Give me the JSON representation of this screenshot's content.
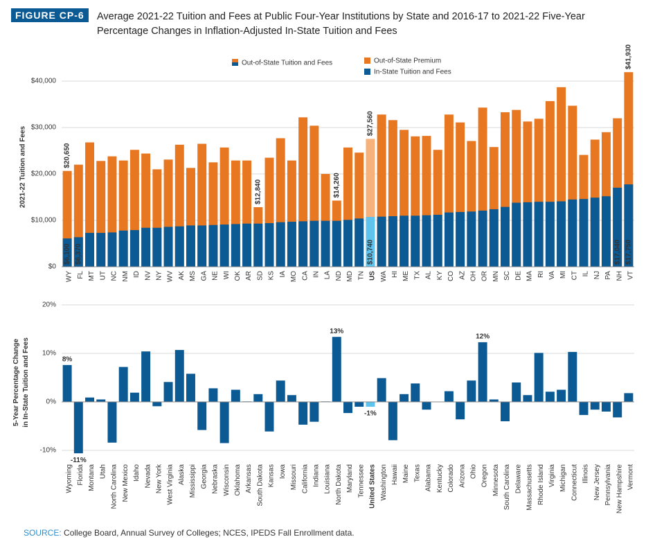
{
  "header": {
    "figure": "FIGURE CP-6",
    "title": "Average 2021-22 Tuition and Fees at Public Four-Year Institutions by State and 2016-17 to 2021-22 Five-Year Percentage Changes in Inflation-Adjusted In-State Tuition and Fees"
  },
  "chart_data": [
    {
      "type": "bar",
      "ylabel": "2021-22 Tuition and Fees",
      "premium_label": "Out-of-State Premium",
      "premium_color": "#e87722",
      "highlight": "US",
      "grid": true,
      "categories": [
        "WY",
        "FL",
        "MT",
        "UT",
        "NC",
        "NM",
        "ID",
        "NV",
        "NY",
        "WV",
        "AK",
        "MS",
        "GA",
        "NE",
        "WI",
        "OK",
        "AR",
        "SD",
        "KS",
        "IA",
        "MO",
        "CA",
        "IN",
        "LA",
        "ND",
        "MD",
        "TN",
        "US",
        "WA",
        "HI",
        "ME",
        "TX",
        "AL",
        "KY",
        "CO",
        "AZ",
        "OH",
        "OR",
        "MN",
        "SC",
        "DE",
        "MA",
        "RI",
        "VA",
        "MI",
        "CT",
        "IL",
        "NJ",
        "PA",
        "NH",
        "VT"
      ],
      "series": [
        {
          "name": "Out-of-State Tuition and Fees",
          "color": "#e87722",
          "highlight_color": "#f6b27a",
          "values": [
            20650,
            22000,
            26800,
            22800,
            23800,
            22900,
            25200,
            24400,
            21000,
            23100,
            26300,
            21300,
            26500,
            22500,
            25700,
            22900,
            22900,
            12840,
            23500,
            27700,
            22900,
            32200,
            30400,
            20000,
            14260,
            25700,
            24600,
            27560,
            32800,
            31600,
            29500,
            28100,
            28200,
            25200,
            32800,
            31100,
            27100,
            34300,
            25800,
            33300,
            33800,
            31300,
            31900,
            35700,
            38700,
            34700,
            24100,
            27400,
            29000,
            32000,
            41930
          ],
          "value_labels": [
            "$20,650",
            null,
            null,
            null,
            null,
            null,
            null,
            null,
            null,
            null,
            null,
            null,
            null,
            null,
            null,
            null,
            null,
            "$12,840",
            null,
            null,
            null,
            null,
            null,
            null,
            "$14,260",
            null,
            null,
            "$27,560",
            null,
            null,
            null,
            null,
            null,
            null,
            null,
            null,
            null,
            null,
            null,
            null,
            null,
            null,
            null,
            null,
            null,
            null,
            null,
            null,
            null,
            null,
            "$41,930"
          ]
        },
        {
          "name": "In-State Tuition and Fees",
          "color": "#0b5a94",
          "highlight_color": "#5ec4ee",
          "values": [
            6100,
            6370,
            7300,
            7300,
            7400,
            7800,
            7900,
            8400,
            8400,
            8600,
            8700,
            8900,
            8900,
            9000,
            9100,
            9200,
            9300,
            9300,
            9400,
            9600,
            9700,
            9800,
            9900,
            9900,
            9900,
            10100,
            10400,
            10740,
            10800,
            10900,
            11000,
            11000,
            11100,
            11200,
            11700,
            11800,
            11900,
            12100,
            12400,
            12900,
            13800,
            13900,
            14000,
            14000,
            14100,
            14500,
            14600,
            14900,
            15200,
            17040,
            17750
          ],
          "value_labels": [
            "$6,100",
            "$6,370",
            null,
            null,
            null,
            null,
            null,
            null,
            null,
            null,
            null,
            null,
            null,
            null,
            null,
            null,
            null,
            null,
            null,
            null,
            null,
            null,
            null,
            null,
            null,
            null,
            null,
            "$10,740",
            null,
            null,
            null,
            null,
            null,
            null,
            null,
            null,
            null,
            null,
            null,
            null,
            null,
            null,
            null,
            null,
            null,
            null,
            null,
            null,
            null,
            "$17,040",
            "$17,750"
          ]
        }
      ],
      "ylim": [
        0,
        43000
      ],
      "yticks": [
        {
          "value": 0,
          "label": "$0"
        },
        {
          "value": 10000,
          "label": "$10,000"
        },
        {
          "value": 20000,
          "label": "$20,000"
        },
        {
          "value": 30000,
          "label": "$30,000"
        },
        {
          "value": 40000,
          "label": "$40,000"
        }
      ]
    },
    {
      "type": "bar",
      "ylabel": "5-Year Percentage Change in In-State Tuition and Fees",
      "highlight": "United States",
      "grid": true,
      "categories": [
        "Wyoming",
        "Florida",
        "Montana",
        "Utah",
        "North Carolina",
        "New Mexico",
        "Idaho",
        "Nevada",
        "New York",
        "West Virginia",
        "Alaska",
        "Mississippi",
        "Georgia",
        "Nebraska",
        "Wisconsin",
        "Oklahoma",
        "Arkansas",
        "South Dakota",
        "Kansas",
        "Iowa",
        "Missouri",
        "California",
        "Indiana",
        "Louisiana",
        "North Dakota",
        "Maryland",
        "Tennessee",
        "United States",
        "Washington",
        "Hawaii",
        "Maine",
        "Texas",
        "Alabama",
        "Kentucky",
        "Colorado",
        "Arizona",
        "Ohio",
        "Oregon",
        "Minnesota",
        "South Carolina",
        "Delaware",
        "Massachusetts",
        "Rhode Island",
        "Virginia",
        "Michigan",
        "Connecticut",
        "Illinois",
        "New Jersey",
        "Pennsylvania",
        "New Hampshire",
        "Vermont"
      ],
      "series": [
        {
          "color": "#0b5a94",
          "highlight_color": "#5ec4ee",
          "values": [
            7.6,
            -10.6,
            0.9,
            0.5,
            -8.4,
            7.2,
            1.9,
            10.4,
            -0.9,
            4.1,
            10.7,
            5.8,
            -5.8,
            2.8,
            -8.5,
            2.5,
            0.1,
            1.6,
            -6.1,
            4.4,
            1.4,
            -4.7,
            -4.1,
            0.1,
            13.4,
            -2.3,
            -1.0,
            -1.0,
            4.9,
            -7.9,
            1.6,
            3.8,
            -1.6,
            0,
            2.2,
            -3.6,
            4.4,
            12.3,
            0.5,
            -4.0,
            4.0,
            1.4,
            10.1,
            2.1,
            2.5,
            10.3,
            -2.7,
            -1.6,
            -2.0,
            -3.2,
            1.8
          ],
          "value_labels": [
            "8%",
            "-11%",
            null,
            null,
            null,
            null,
            null,
            null,
            null,
            null,
            null,
            null,
            null,
            null,
            null,
            null,
            null,
            null,
            null,
            null,
            null,
            null,
            null,
            null,
            "13%",
            null,
            null,
            "-1%",
            null,
            null,
            null,
            null,
            null,
            null,
            null,
            null,
            null,
            "12%",
            null,
            null,
            null,
            null,
            null,
            null,
            null,
            null,
            null,
            null,
            null,
            null,
            null
          ]
        }
      ],
      "ylim": [
        -12,
        20
      ],
      "yticks": [
        {
          "value": -10,
          "label": "-10%"
        },
        {
          "value": 0,
          "label": "0%"
        },
        {
          "value": 10,
          "label": "10%"
        },
        {
          "value": 20,
          "label": "20%"
        }
      ]
    }
  ],
  "footer": {
    "source_label": "SOURCE:",
    "source": "College Board, Annual Survey of Colleges; NCES, IPEDS Fall Enrollment data."
  }
}
